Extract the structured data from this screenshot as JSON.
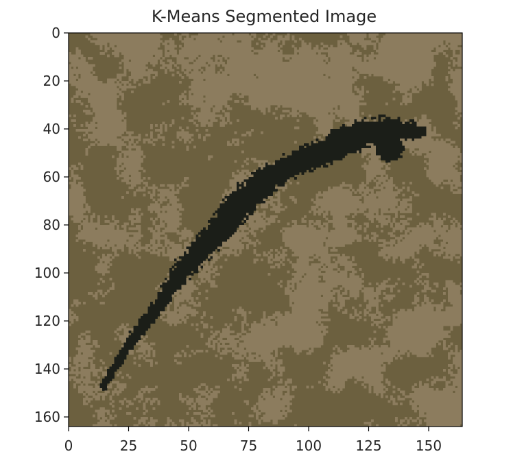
{
  "chart_data": {
    "type": "heatmap",
    "title": "K-Means Segmented Image",
    "xlabel": "",
    "ylabel": "",
    "xlim": [
      0,
      164
    ],
    "ylim": [
      164,
      0
    ],
    "image_size": [
      164,
      164
    ],
    "x_ticks": [
      {
        "value": 0,
        "label": "0"
      },
      {
        "value": 25,
        "label": "25"
      },
      {
        "value": 50,
        "label": "50"
      },
      {
        "value": 75,
        "label": "75"
      },
      {
        "value": 100,
        "label": "100"
      },
      {
        "value": 125,
        "label": "125"
      },
      {
        "value": 150,
        "label": "150"
      }
    ],
    "y_ticks": [
      {
        "value": 0,
        "label": "0"
      },
      {
        "value": 20,
        "label": "20"
      },
      {
        "value": 40,
        "label": "40"
      },
      {
        "value": 60,
        "label": "60"
      },
      {
        "value": 80,
        "label": "80"
      },
      {
        "value": 100,
        "label": "100"
      },
      {
        "value": 120,
        "label": "120"
      },
      {
        "value": 140,
        "label": "140"
      },
      {
        "value": 160,
        "label": "160"
      }
    ],
    "clusters": [
      {
        "color": "#6c603f"
      },
      {
        "color": "#8c7c5e"
      },
      {
        "color": "#1b1e18"
      }
    ],
    "dark_region_spine": [
      [
        14,
        147
      ],
      [
        18,
        140
      ],
      [
        22,
        133
      ],
      [
        27,
        126
      ],
      [
        32,
        120
      ],
      [
        38,
        112
      ],
      [
        43,
        104
      ],
      [
        48,
        97
      ],
      [
        54,
        91
      ],
      [
        60,
        84
      ],
      [
        65,
        78
      ],
      [
        70,
        72
      ],
      [
        76,
        66
      ],
      [
        82,
        61
      ],
      [
        88,
        57
      ],
      [
        94,
        54
      ],
      [
        100,
        51
      ],
      [
        106,
        49
      ],
      [
        112,
        46
      ],
      [
        118,
        43
      ],
      [
        124,
        41
      ],
      [
        130,
        40
      ],
      [
        136,
        40
      ],
      [
        142,
        40
      ],
      [
        147,
        41
      ]
    ],
    "dark_region_halfwidth": [
      1.2,
      1.6,
      2.0,
      2.4,
      2.6,
      2.8,
      3.4,
      4.2,
      4.4,
      4.6,
      5.2,
      5.8,
      5.6,
      5.0,
      4.6,
      4.8,
      5.0,
      5.2,
      5.4,
      5.6,
      5.4,
      5.0,
      4.4,
      3.4,
      2.2
    ],
    "dark_region_blobs": [
      {
        "x": 133,
        "y": 47,
        "r": 6
      },
      {
        "x": 112,
        "y": 44,
        "r": 5
      },
      {
        "x": 72,
        "y": 70,
        "r": 5
      }
    ],
    "grid": false,
    "legend": "none",
    "colorbar": false
  }
}
